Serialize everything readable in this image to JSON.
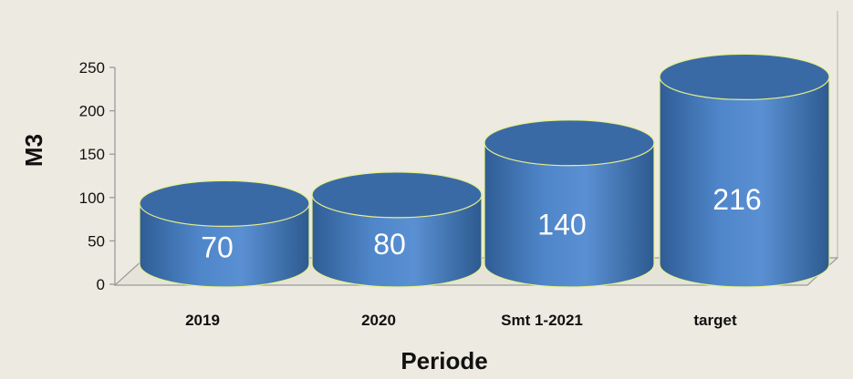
{
  "chart_data": {
    "type": "bar",
    "style": "3d-cylinder",
    "categories": [
      "2019",
      "2020",
      "Smt 1-2021",
      "target"
    ],
    "values": [
      70,
      80,
      140,
      216
    ],
    "data_labels": [
      "70",
      "80",
      "140",
      "216"
    ],
    "xlabel": "Periode",
    "ylabel": "M3",
    "ylim": [
      0,
      250
    ],
    "yticks": [
      "0",
      "50",
      "100",
      "150",
      "200",
      "250"
    ],
    "grid": false,
    "legend": "none",
    "colors": {
      "bar_main": "#4a7ec0",
      "bar_light": "#5d93d6",
      "bar_dark": "#2e5b91",
      "bar_top": "#3a6aa6",
      "bar_outline": "#e6f08a",
      "background": "#edeae1",
      "axis": "#9a9a9a"
    }
  }
}
